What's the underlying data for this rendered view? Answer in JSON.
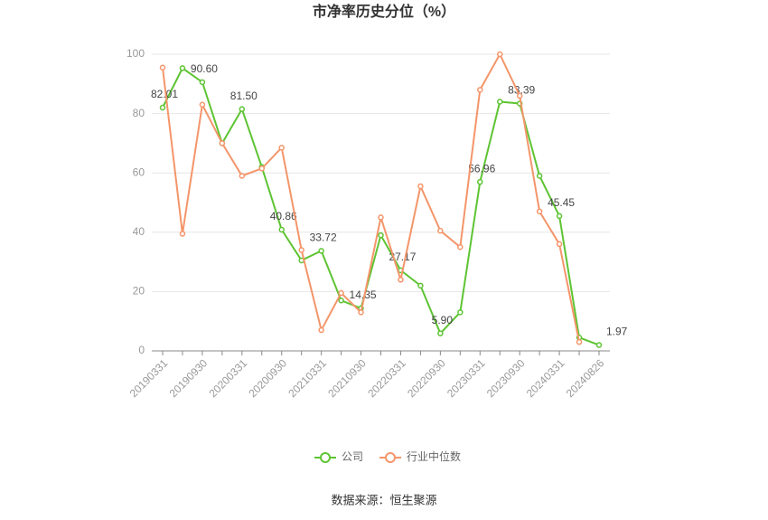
{
  "chart_data": {
    "type": "line",
    "title": "市净率历史分位（%）",
    "categories": [
      "20190331",
      null,
      "20190930",
      null,
      "20200331",
      null,
      "20200930",
      null,
      "20210331",
      null,
      "20210930",
      null,
      "20220331",
      null,
      "20220930",
      null,
      "20230331",
      null,
      "20230930",
      null,
      "20240331",
      null,
      "20240826"
    ],
    "series": [
      {
        "name": "公司",
        "color": "#5ec433",
        "values": [
          82.01,
          95.3,
          90.6,
          70,
          81.5,
          62,
          40.86,
          30.5,
          33.72,
          17,
          14.35,
          39,
          27.17,
          22,
          5.9,
          13,
          56.96,
          84,
          83.39,
          59,
          45.45,
          4.5,
          1.97
        ],
        "value_labels": [
          "82.01",
          null,
          "90.60",
          null,
          "81.50",
          null,
          "40.86",
          null,
          "33.72",
          null,
          "14.35",
          null,
          "27.17",
          null,
          "5.90",
          null,
          "56.96",
          null,
          "83.39",
          null,
          "45.45",
          null,
          "1.97"
        ]
      },
      {
        "name": "行业中位数",
        "color": "#f4956a",
        "values": [
          95.5,
          39.5,
          83,
          70,
          59,
          61.5,
          68.5,
          34,
          7,
          19.5,
          13,
          45,
          24,
          55.5,
          40.5,
          35,
          88,
          100,
          86,
          47,
          36,
          3,
          null
        ]
      }
    ],
    "ylim": [
      0,
      100
    ],
    "yticks": [
      0,
      20,
      40,
      60,
      80,
      100
    ],
    "grid": true,
    "legend": "bottom",
    "source": "数据来源：恒生聚源"
  }
}
